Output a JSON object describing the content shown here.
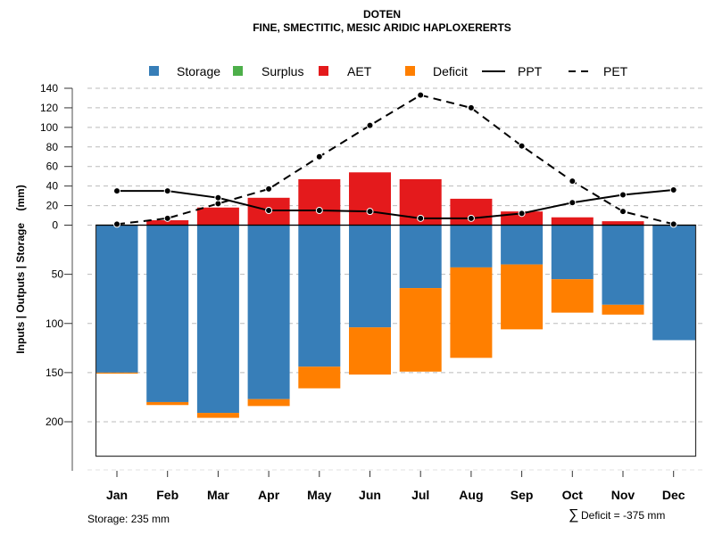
{
  "chart_data": {
    "type": "bar",
    "title": "DOTEN",
    "subtitle": "FINE, SMECTITIC, MESIC ARIDIC HAPLOXERERTS",
    "xlabel": "",
    "ylabel": "Inputs | Outputs | Storage    (mm)",
    "categories": [
      "Jan",
      "Feb",
      "Mar",
      "Apr",
      "May",
      "Jun",
      "Jul",
      "Aug",
      "Sep",
      "Oct",
      "Nov",
      "Dec"
    ],
    "upper_axis": {
      "ylim": [
        0,
        140
      ],
      "ticks": [
        0,
        20,
        40,
        60,
        80,
        100,
        120,
        140
      ]
    },
    "lower_axis": {
      "ylim": [
        0,
        235
      ],
      "ticks": [
        50,
        100,
        150,
        200
      ]
    },
    "grid": true,
    "legend_position": "top",
    "colors": {
      "storage": "#377EB8",
      "surplus": "#4DAF4A",
      "aet": "#E41A1C",
      "deficit": "#FF7F00",
      "line": "#000000",
      "grid": "#bbbbbb"
    },
    "legend": [
      {
        "key": "storage",
        "label": "Storage",
        "kind": "box"
      },
      {
        "key": "surplus",
        "label": "Surplus",
        "kind": "box"
      },
      {
        "key": "aet",
        "label": "AET",
        "kind": "box"
      },
      {
        "key": "deficit",
        "label": "Deficit",
        "kind": "box"
      },
      {
        "key": "ppt",
        "label": "PPT",
        "kind": "solid"
      },
      {
        "key": "pet",
        "label": "PET",
        "kind": "dashed"
      }
    ],
    "series": [
      {
        "name": "AET",
        "values": [
          0,
          5,
          18,
          28,
          47,
          54,
          47,
          27,
          14,
          8,
          4,
          0
        ]
      },
      {
        "name": "Surplus",
        "values": [
          0,
          0,
          0,
          0,
          0,
          0,
          0,
          0,
          0,
          0,
          0,
          0
        ]
      },
      {
        "name": "Storage",
        "values": [
          150,
          180,
          191,
          177,
          144,
          104,
          64,
          43,
          40,
          55,
          81,
          117
        ]
      },
      {
        "name": "Deficit",
        "values": [
          1,
          3,
          5,
          7,
          22,
          48,
          85,
          92,
          66,
          34,
          10,
          0
        ]
      },
      {
        "name": "PPT",
        "values": [
          35,
          35,
          28,
          15,
          15,
          14,
          7,
          7,
          12,
          23,
          31,
          36
        ]
      },
      {
        "name": "PET",
        "values": [
          1,
          7,
          22,
          37,
          70,
          102,
          133,
          120,
          81,
          45,
          14,
          1
        ]
      }
    ],
    "storage_capacity": 235,
    "annotations": {
      "storage_note": "Storage: 235 mm",
      "deficit_symbol": "∑",
      "deficit_note": "Deficit = -375 mm"
    }
  }
}
